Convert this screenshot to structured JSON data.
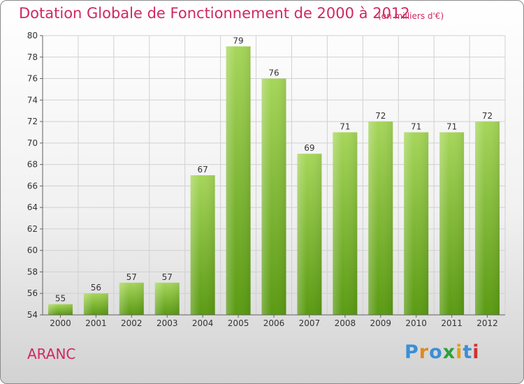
{
  "header": {
    "title": "Dotation Globale de Fonctionnement de 2000 à 2012",
    "unit": "(en milliers d'€)"
  },
  "commune": "ARANC",
  "brand": {
    "text": "Proxiti",
    "letters": [
      {
        "ch": "P",
        "color": "#3a8fd6"
      },
      {
        "ch": "r",
        "color": "#e08a1a"
      },
      {
        "ch": "o",
        "color": "#3a8fd6"
      },
      {
        "ch": "x",
        "color": "#2aa23a"
      },
      {
        "ch": "i",
        "color": "#e0a01a"
      },
      {
        "ch": "t",
        "color": "#3a8fd6"
      },
      {
        "ch": "i",
        "color": "#d03030"
      }
    ]
  },
  "colors": {
    "bar_top": "#a6d65a",
    "bar_bottom": "#5a9a12",
    "title": "#d02860",
    "grid": "#d0d0d0",
    "axis": "#606060"
  },
  "chart_data": {
    "type": "bar",
    "categories": [
      "2000",
      "2001",
      "2002",
      "2003",
      "2004",
      "2005",
      "2006",
      "2007",
      "2008",
      "2009",
      "2010",
      "2011",
      "2012"
    ],
    "values": [
      55,
      56,
      57,
      57,
      67,
      79,
      76,
      69,
      71,
      72,
      71,
      71,
      72
    ],
    "ylim": [
      54,
      80
    ],
    "yticks": [
      54,
      56,
      58,
      60,
      62,
      64,
      66,
      68,
      70,
      72,
      74,
      76,
      78,
      80
    ],
    "grid": true,
    "data_labels": true
  }
}
